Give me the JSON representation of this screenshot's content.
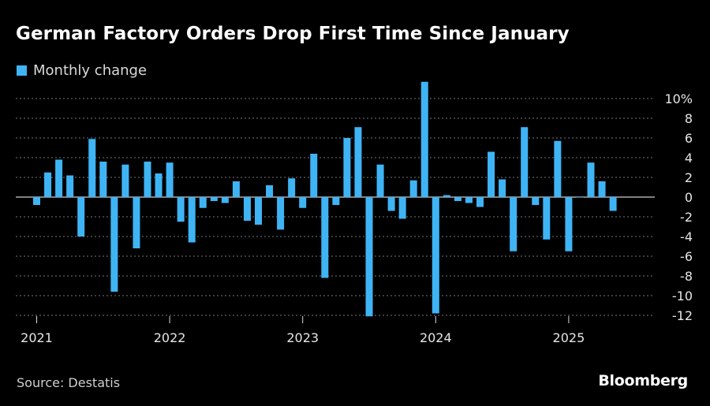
{
  "header": {
    "title": "German Factory Orders Drop First Time Since January"
  },
  "legend": {
    "label": "Monthly change",
    "color": "#3fb4f5"
  },
  "footer": {
    "source": "Source: Destatis",
    "brand": "Bloomberg"
  },
  "chart_data": {
    "type": "bar",
    "x_axis": {
      "type": "time",
      "start": "2021-01",
      "tick_labels": [
        "2021",
        "2022",
        "2023",
        "2024",
        "2025"
      ]
    },
    "y_axis": {
      "position": "right",
      "ylim": [
        -12.5,
        11
      ],
      "ticks": [
        10,
        8,
        6,
        4,
        2,
        0,
        -2,
        -4,
        -6,
        -8,
        -10,
        -12
      ],
      "tick_labels": [
        "10%",
        "8",
        "6",
        "4",
        "2",
        "0",
        "-2",
        "-4",
        "-6",
        "-8",
        "-10",
        "-12"
      ],
      "gridlines": true,
      "grid_style": "dotted"
    },
    "series": [
      {
        "name": "Monthly change",
        "color": "#3fb4f5",
        "x": [
          "2021-01",
          "2021-02",
          "2021-03",
          "2021-04",
          "2021-05",
          "2021-06",
          "2021-07",
          "2021-08",
          "2021-09",
          "2021-10",
          "2021-11",
          "2021-12",
          "2022-01",
          "2022-02",
          "2022-03",
          "2022-04",
          "2022-05",
          "2022-06",
          "2022-07",
          "2022-08",
          "2022-09",
          "2022-10",
          "2022-11",
          "2022-12",
          "2023-01",
          "2023-02",
          "2023-03",
          "2023-04",
          "2023-05",
          "2023-06",
          "2023-07",
          "2023-08",
          "2023-09",
          "2023-10",
          "2023-11",
          "2023-12",
          "2024-01",
          "2024-02",
          "2024-03",
          "2024-04",
          "2024-05",
          "2024-06",
          "2024-07",
          "2024-08",
          "2024-09",
          "2024-10",
          "2024-11",
          "2024-12",
          "2025-01",
          "2025-02",
          "2025-03",
          "2025-04",
          "2025-05"
        ],
        "values": [
          -0.8,
          2.5,
          3.8,
          2.2,
          -4.0,
          5.9,
          3.6,
          -9.6,
          3.3,
          -5.2,
          3.6,
          2.4,
          3.5,
          -2.5,
          -4.6,
          -1.1,
          -0.4,
          -0.6,
          1.6,
          -2.4,
          -2.8,
          1.2,
          -3.3,
          1.9,
          -1.1,
          4.4,
          -8.2,
          -0.8,
          6.0,
          7.1,
          -12.1,
          3.3,
          -1.4,
          -2.2,
          1.7,
          11.7,
          -11.8,
          0.2,
          -0.4,
          -0.6,
          -1.0,
          4.6,
          1.8,
          -5.5,
          7.1,
          -0.8,
          -4.3,
          5.7,
          -5.5,
          0.0,
          3.5,
          1.6,
          -1.4
        ]
      }
    ]
  }
}
